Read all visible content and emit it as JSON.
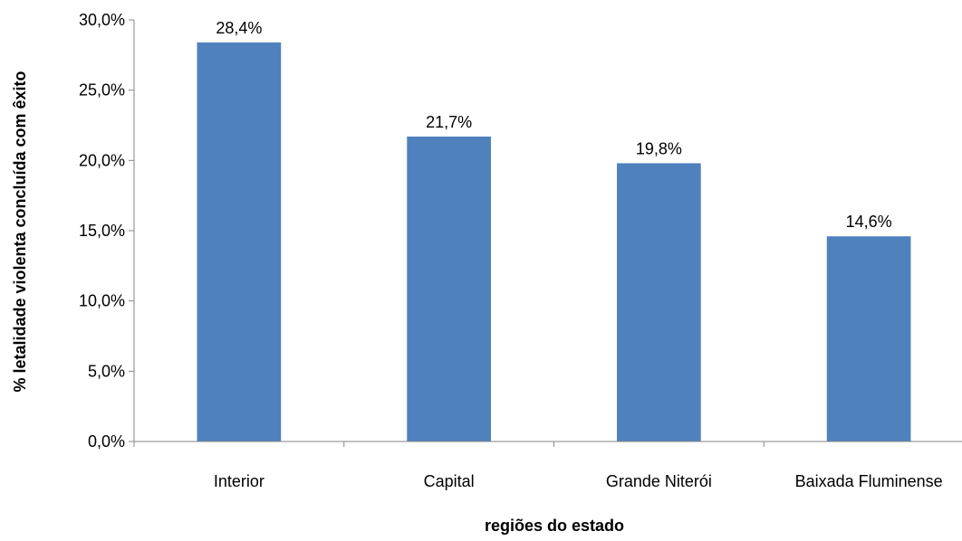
{
  "chart_data": {
    "type": "bar",
    "title": "",
    "xlabel": "regiões do estado",
    "ylabel": "% letalidade violenta concluída  com êxito",
    "categories": [
      "Interior",
      "Capital",
      "Grande Niterói",
      "Baixada Fluminense"
    ],
    "values": [
      28.4,
      21.7,
      19.8,
      14.6
    ],
    "data_labels": [
      "28,4%",
      "21,7%",
      "19,8%",
      "14,6%"
    ],
    "ylim": [
      0,
      30
    ],
    "yticks": [
      0,
      5,
      10,
      15,
      20,
      25,
      30
    ],
    "ytick_labels": [
      "0,0%",
      "5,0%",
      "10,0%",
      "15,0%",
      "20,0%",
      "25,0%",
      "30,0%"
    ],
    "grid": false,
    "legend": "none",
    "colors": {
      "bar": "#4f81bd",
      "axis": "#868686"
    }
  }
}
